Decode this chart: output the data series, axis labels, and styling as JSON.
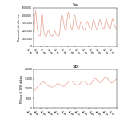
{
  "title_a": "5a",
  "title_b": "5b",
  "ylabel_a": "Thousands of cubic feet",
  "ylabel_b": "Millions of 1996 dollars",
  "line_color": "#e8a898",
  "background_color": "#ffffff",
  "ylim_a": [
    0,
    500000
  ],
  "ylim_b": [
    0,
    20000
  ],
  "yticks_a": [
    0,
    100000,
    200000,
    300000,
    400000,
    500000
  ],
  "ytick_labels_a": [
    "0",
    "100,000",
    "200,000",
    "300,000",
    "400,000",
    "500,000"
  ],
  "yticks_b": [
    0,
    5000,
    10000,
    15000,
    20000
  ],
  "ytick_labels_b": [
    "0",
    "5000",
    "10000",
    "15000",
    "20000"
  ],
  "xtick_labels": [
    "Jan\n'93",
    "Jan\n'94",
    "Jan\n'95",
    "Jan\n'96",
    "Jan\n'97",
    "Jan\n'98",
    "Jan\n'99",
    "Jan\n'00",
    "Jan\n'01",
    "Jan\n'02",
    "Jan\n'03",
    "Jan\n'04",
    "Jan\n'05"
  ],
  "gas_data": [
    130000,
    155000,
    290000,
    420000,
    460000,
    400000,
    310000,
    230000,
    180000,
    155000,
    140000,
    135000,
    130000,
    150000,
    280000,
    400000,
    440000,
    390000,
    300000,
    220000,
    170000,
    145000,
    132000,
    128000,
    125000,
    145000,
    170000,
    195000,
    210000,
    195000,
    175000,
    158000,
    148000,
    140000,
    135000,
    132000,
    130000,
    148000,
    165000,
    185000,
    200000,
    190000,
    172000,
    156000,
    147000,
    140000,
    136000,
    133000,
    132000,
    148000,
    200000,
    290000,
    360000,
    400000,
    410000,
    385000,
    345000,
    300000,
    260000,
    230000,
    210000,
    200000,
    220000,
    300000,
    370000,
    420000,
    440000,
    415000,
    370000,
    320000,
    275000,
    245000,
    225000,
    215000,
    235000,
    300000,
    350000,
    390000,
    405000,
    380000,
    342000,
    300000,
    265000,
    240000,
    220000,
    210000,
    215000,
    245000,
    280000,
    310000,
    320000,
    305000,
    280000,
    252000,
    232000,
    218000,
    210000,
    205000,
    215000,
    250000,
    285000,
    315000,
    325000,
    310000,
    285000,
    258000,
    238000,
    222000,
    215000,
    210000,
    220000,
    260000,
    300000,
    330000,
    345000,
    328000,
    300000,
    270000,
    248000,
    232000,
    222000,
    218000,
    225000,
    262000,
    302000,
    332000,
    346000,
    330000,
    305000,
    275000,
    255000,
    240000,
    230000,
    225000,
    232000,
    268000,
    308000,
    338000,
    352000,
    334000,
    308000,
    278000,
    258000,
    242000,
    232000,
    228000,
    235000,
    272000,
    312000,
    342000,
    356000,
    338000,
    312000,
    282000,
    262000,
    245000,
    234000,
    230000
  ],
  "construction_data": [
    8500,
    8700,
    8900,
    9200,
    9600,
    10100,
    10500,
    10900,
    11200,
    11500,
    11800,
    12000,
    12200,
    12400,
    12700,
    13000,
    13300,
    13500,
    13600,
    13500,
    13300,
    13000,
    12700,
    12400,
    12100,
    11900,
    11700,
    11500,
    11400,
    11300,
    11200,
    11100,
    11000,
    10900,
    10800,
    10800,
    10800,
    10900,
    11000,
    11200,
    11400,
    11600,
    11900,
    12100,
    12300,
    12500,
    12600,
    12600,
    12500,
    12300,
    12100,
    11900,
    11700,
    11500,
    11400,
    11300,
    11200,
    11200,
    11300,
    11400,
    11600,
    11900,
    12200,
    12500,
    12900,
    13200,
    13500,
    13700,
    13900,
    14000,
    14000,
    14000,
    13900,
    13800,
    13600,
    13400,
    13100,
    12800,
    12500,
    12300,
    12100,
    11900,
    11800,
    11700,
    11700,
    11800,
    12000,
    12300,
    12600,
    12900,
    13200,
    13500,
    13700,
    13800,
    13900,
    13900,
    13800,
    13600,
    13400,
    13100,
    12900,
    12600,
    12400,
    12200,
    12100,
    12000,
    12000,
    12100,
    12300,
    12600,
    13000,
    13400,
    13800,
    14200,
    14600,
    14900,
    15100,
    15200,
    15100,
    14900,
    14600,
    14300,
    14000,
    13700,
    13500,
    13300,
    13200,
    13200,
    13300,
    13500,
    13800,
    14200,
    14600,
    15000,
    15400,
    15700,
    15900,
    16000,
    15900,
    15600,
    15300,
    14900,
    14500,
    14100,
    13700,
    13400,
    13200,
    13100,
    13000,
    13100,
    13200,
    13400,
    13700,
    14000,
    14300,
    14500,
    14700,
    14900
  ]
}
